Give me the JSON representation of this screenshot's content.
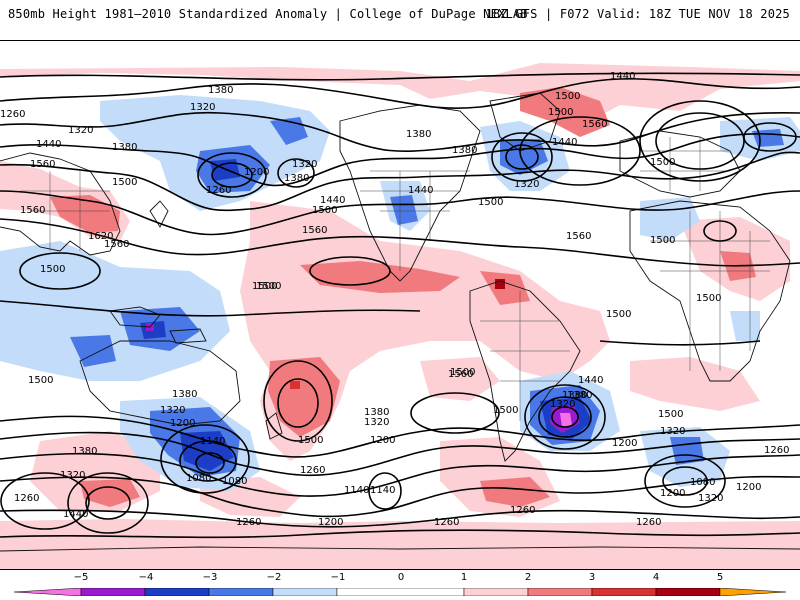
{
  "header": {
    "title_left": "850mb Height 1981–2010 Standardized Anomaly | College of DuPage NEXLAB",
    "title_right": "18Z GFS | F072 Valid: 18Z TUE NOV 18 2025"
  },
  "map": {
    "contour_levels": [
      "1080",
      "1140",
      "1200",
      "1260",
      "1320",
      "1380",
      "1440",
      "1500",
      "1560",
      "1620"
    ],
    "contour_labels": [
      "1380",
      "1320",
      "1260",
      "1320",
      "1440",
      "1380",
      "1560",
      "1500",
      "1560",
      "1620",
      "1560",
      "1500",
      "1500",
      "1260",
      "1200",
      "1320",
      "1380",
      "1500",
      "1440",
      "1500",
      "1560",
      "1440",
      "1380",
      "1500",
      "1380",
      "1320",
      "1440",
      "1500",
      "1560",
      "1500",
      "1440",
      "1560",
      "1500",
      "1500",
      "1440",
      "1380",
      "1320",
      "1200",
      "1140",
      "1080",
      "1380",
      "1320",
      "1380",
      "1440",
      "1260",
      "1320",
      "1200",
      "1140",
      "1260",
      "1380",
      "1320",
      "1200",
      "1500",
      "1380",
      "1320",
      "1200",
      "1080",
      "1260",
      "1260",
      "1200",
      "1320",
      "1260",
      "1260",
      "1080",
      "1200",
      "1140",
      "1260",
      "1500",
      "1560",
      "1500",
      "1500",
      "1500",
      "1500",
      "1500"
    ],
    "anomaly_colors": {
      "neg5": "#f472e6",
      "neg4": "#9b1ad0",
      "neg3": "#1c3ec6",
      "neg2": "#4a78e6",
      "neg1": "#c2dcfa",
      "pos1": "#fcd0d4",
      "pos2": "#f07a7e",
      "pos3": "#d83232",
      "pos4": "#a80010",
      "pos5": "#ffa000"
    }
  },
  "legend": {
    "ticks": [
      "−5",
      "−4",
      "−3",
      "−2",
      "−1",
      "0",
      "1",
      "2",
      "3",
      "4",
      "5"
    ]
  }
}
